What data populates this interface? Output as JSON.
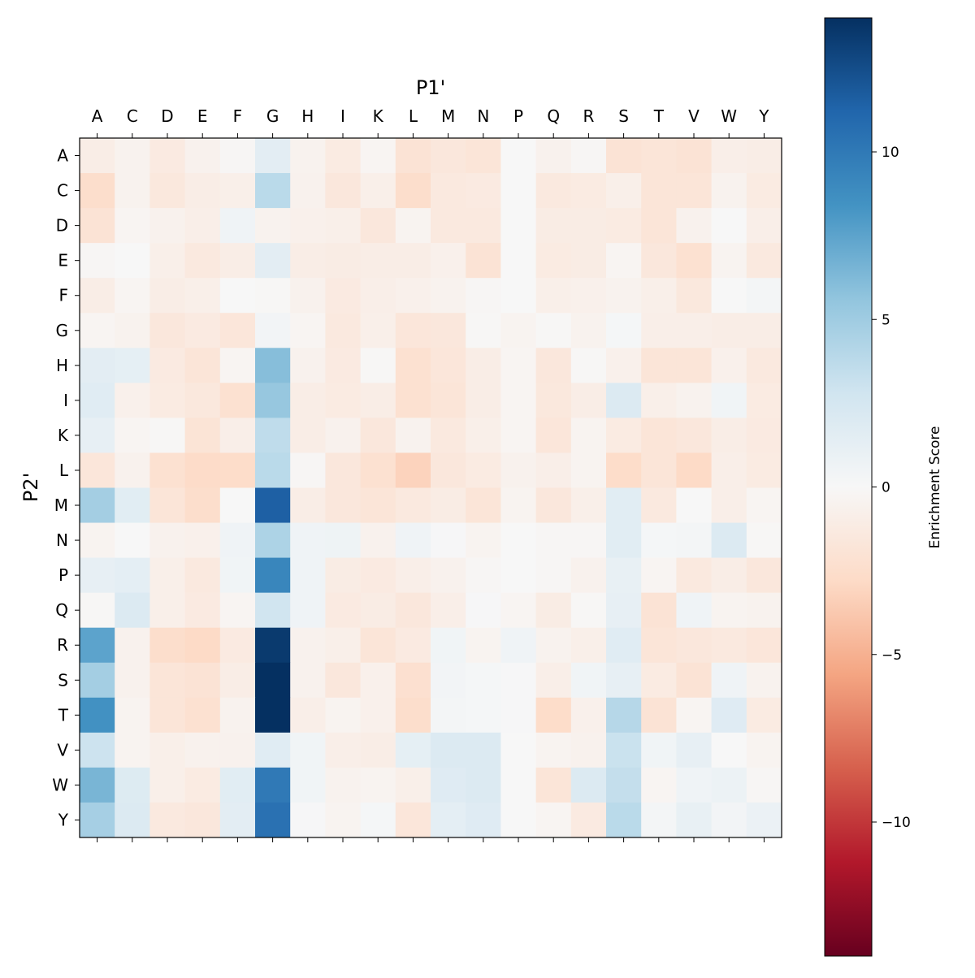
{
  "chart_data": {
    "type": "heatmap",
    "title": "",
    "xlabel": "P1'",
    "ylabel": "P2'",
    "x_categories": [
      "A",
      "C",
      "D",
      "E",
      "F",
      "G",
      "H",
      "I",
      "K",
      "L",
      "M",
      "N",
      "P",
      "Q",
      "R",
      "S",
      "T",
      "V",
      "W",
      "Y"
    ],
    "y_categories": [
      "A",
      "C",
      "D",
      "E",
      "F",
      "G",
      "H",
      "I",
      "K",
      "L",
      "M",
      "N",
      "P",
      "Q",
      "R",
      "S",
      "T",
      "V",
      "W",
      "Y"
    ],
    "colormap": "RdBu",
    "colormap_stops": [
      "#67001f",
      "#b2182b",
      "#d6604d",
      "#f4a582",
      "#fddbc7",
      "#f7f7f7",
      "#d1e5f0",
      "#92c5de",
      "#4393c3",
      "#2166ac",
      "#053061"
    ],
    "vmin": -14,
    "vmax": 14,
    "colorbar": {
      "label": "Enrichment Score",
      "ticks": [
        10,
        5,
        0,
        -5,
        -10
      ],
      "tick_labels": [
        "10",
        "5",
        "0",
        "−5",
        "−10"
      ]
    },
    "values": [
      [
        -1,
        -0.5,
        -1.3,
        -0.6,
        -0.2,
        1.5,
        -0.5,
        -1.2,
        -0.3,
        -2,
        -1.6,
        -1.8,
        0,
        -0.6,
        -0.2,
        -2,
        -1.8,
        -2,
        -0.9,
        -1
      ],
      [
        -2.5,
        -0.5,
        -1.5,
        -1,
        -0.8,
        3.8,
        -0.6,
        -1.6,
        -0.8,
        -2.5,
        -1.4,
        -1.3,
        0,
        -1.4,
        -1.2,
        -0.8,
        -1.8,
        -1.8,
        -0.5,
        -1.2
      ],
      [
        -2,
        -0.3,
        -0.6,
        -0.9,
        0.6,
        -0.5,
        -0.7,
        -0.8,
        -1.6,
        -0.4,
        -1.4,
        -1.4,
        0,
        -1.1,
        -1.1,
        -1.2,
        -1.8,
        -0.6,
        0,
        -0.9
      ],
      [
        -0.2,
        0,
        -0.8,
        -1.4,
        -1,
        1.5,
        -1,
        -1.1,
        -1,
        -1,
        -0.7,
        -2,
        0,
        -1.2,
        -1.1,
        -0.3,
        -1.6,
        -2.2,
        -0.4,
        -1.4
      ],
      [
        -1,
        -0.3,
        -1,
        -0.8,
        0,
        -0.1,
        -0.6,
        -1.3,
        -0.9,
        -0.7,
        -0.5,
        -0.2,
        0,
        -0.8,
        -0.7,
        -0.5,
        -0.8,
        -1.5,
        0,
        0.3
      ],
      [
        -0.3,
        -0.5,
        -1.6,
        -1.3,
        -1.7,
        0.4,
        -0.3,
        -1.4,
        -0.8,
        -1.7,
        -1.6,
        -0.1,
        -0.4,
        -0.1,
        -0.5,
        0.2,
        -0.9,
        -0.9,
        -1,
        -1
      ],
      [
        1.5,
        1.3,
        -1.3,
        -1.8,
        -0.3,
        6,
        -0.6,
        -1.3,
        -0.1,
        -2.2,
        -1.7,
        -1,
        -0.3,
        -1.6,
        -0.1,
        -0.7,
        -1.8,
        -1.8,
        -0.7,
        -1.4
      ],
      [
        1.7,
        -0.7,
        -1.2,
        -1.5,
        -2.2,
        5.4,
        -1,
        -1.2,
        -1,
        -2.2,
        -1.8,
        -1,
        -0.3,
        -1.5,
        -1,
        2,
        -0.8,
        -0.5,
        0.5,
        -1.2
      ],
      [
        1.2,
        -0.3,
        -0.1,
        -1.9,
        -0.9,
        3.6,
        -1,
        -0.6,
        -1.6,
        -0.5,
        -1.4,
        -0.8,
        -0.3,
        -1.7,
        -0.4,
        -1.2,
        -1.8,
        -1.6,
        -1,
        -1.3
      ],
      [
        -1.7,
        -0.6,
        -2.2,
        -2.7,
        -2.6,
        3.8,
        -0.2,
        -1.6,
        -2.2,
        -3.2,
        -1.6,
        -1.2,
        -0.6,
        -0.9,
        -0.4,
        -2.6,
        -1.8,
        -2.8,
        -0.9,
        -1.2
      ],
      [
        4.8,
        1.6,
        -1.8,
        -2.5,
        0,
        11.5,
        -1,
        -1.6,
        -1.8,
        -1.4,
        -1.1,
        -1.8,
        -0.4,
        -1.6,
        -0.8,
        1.6,
        -1.4,
        0,
        -0.9,
        -0.3
      ],
      [
        -0.4,
        0,
        -0.6,
        -0.7,
        0.6,
        4.4,
        0.6,
        0.7,
        -0.6,
        0.6,
        0.1,
        -0.4,
        0,
        -0.2,
        -0.2,
        1.6,
        0.2,
        0.3,
        2,
        -0.1
      ],
      [
        1.2,
        1.4,
        -0.8,
        -1.4,
        0.5,
        9.2,
        0.6,
        -1.1,
        -1.3,
        -0.9,
        -0.6,
        -0.2,
        0,
        -0.2,
        -0.6,
        1.1,
        -0.3,
        -1.4,
        -1,
        -1.6
      ],
      [
        -0.1,
        2,
        -0.8,
        -1.3,
        -0.3,
        2.8,
        0.6,
        -1.3,
        -1.1,
        -1.6,
        -0.9,
        0.1,
        -0.3,
        -1.1,
        -0.1,
        1.2,
        -2,
        0.6,
        -0.4,
        -0.5
      ],
      [
        7.5,
        -0.6,
        -2.5,
        -2.8,
        -1.3,
        13.5,
        -0.6,
        -0.8,
        -1.8,
        -1.3,
        0.5,
        -0.4,
        0.6,
        -0.5,
        -0.8,
        1.7,
        -1.8,
        -1.6,
        -1.4,
        -1.7
      ],
      [
        4.8,
        -0.6,
        -1.8,
        -2,
        -1,
        14,
        -0.6,
        -1.6,
        -0.7,
        -2.3,
        0.4,
        0.2,
        0.1,
        -0.9,
        0.5,
        1.2,
        -1.2,
        -2,
        0.6,
        -0.5
      ],
      [
        8.5,
        -0.4,
        -1.8,
        -2.2,
        -0.5,
        14,
        -0.9,
        -0.4,
        -0.7,
        -2.5,
        0.3,
        0.2,
        0.1,
        -2.6,
        -0.7,
        4,
        -2,
        -0.3,
        1.8,
        -1.2
      ],
      [
        3,
        -0.4,
        -0.8,
        -0.6,
        -0.6,
        1.7,
        0.5,
        -0.9,
        -1,
        1.3,
        2,
        2,
        0,
        -0.4,
        -0.6,
        3.1,
        0.5,
        1.2,
        0,
        -0.4
      ],
      [
        6.5,
        1.9,
        -0.8,
        -1.2,
        1.6,
        10,
        0.5,
        -0.5,
        -0.4,
        -0.8,
        1.8,
        2,
        0,
        -1.8,
        2,
        3.4,
        -0.3,
        0.6,
        0.8,
        -0.2
      ],
      [
        4.7,
        2,
        -1.4,
        -1.6,
        1.5,
        10.5,
        0.1,
        -0.4,
        0.2,
        -1.7,
        1.4,
        1.8,
        0,
        -0.3,
        -1.3,
        3.8,
        0.3,
        1.1,
        0.4,
        0.9
      ]
    ]
  }
}
